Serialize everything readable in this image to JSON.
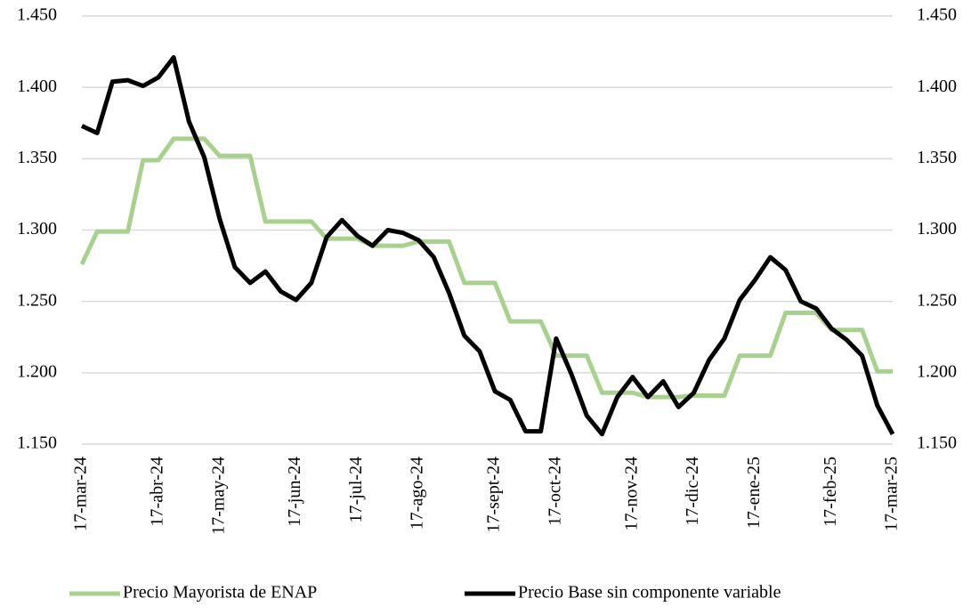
{
  "chart_data": {
    "type": "line",
    "categories": [
      "17-mar-24",
      null,
      null,
      null,
      null,
      "17-abr-24",
      null,
      null,
      null,
      "17-may-24",
      null,
      null,
      null,
      null,
      "17-jun-24",
      null,
      null,
      null,
      "17-jul-24",
      null,
      null,
      null,
      "17-ago-24",
      null,
      null,
      null,
      null,
      "17-sept-24",
      null,
      null,
      null,
      "17-oct-24",
      null,
      null,
      null,
      null,
      "17-nov-24",
      null,
      null,
      null,
      "17-dic-24",
      null,
      null,
      null,
      "17-ene-25",
      null,
      null,
      null,
      null,
      "17-feb-25",
      null,
      null,
      null,
      "17-mar-25"
    ],
    "series": [
      {
        "name": "Precio Mayorista de ENAP",
        "color": "#a9d18e",
        "values": [
          1276,
          1299,
          1299,
          1299,
          1349,
          1349,
          1364,
          1364,
          1364,
          1352,
          1352,
          1352,
          1306,
          1306,
          1306,
          1306,
          1294,
          1294,
          1294,
          1289,
          1289,
          1289,
          1292,
          1292,
          1292,
          1263,
          1263,
          1263,
          1236,
          1236,
          1236,
          1212,
          1212,
          1212,
          1186,
          1186,
          1186,
          1183,
          1183,
          1183,
          1184,
          1184,
          1184,
          1212,
          1212,
          1212,
          1242,
          1242,
          1242,
          1230,
          1230,
          1230,
          1201,
          1201
        ]
      },
      {
        "name": "Precio Base sin componente variable",
        "color": "#000000",
        "values": [
          1373,
          1368,
          1404,
          1405,
          1401,
          1407,
          1421,
          1376,
          1351,
          1308,
          1274,
          1263,
          1271,
          1257,
          1251,
          1263,
          1295,
          1307,
          1296,
          1289,
          1300,
          1298,
          1293,
          1281,
          1256,
          1226,
          1215,
          1187,
          1181,
          1159,
          1159,
          1224,
          1199,
          1170,
          1157,
          1183,
          1197,
          1183,
          1194,
          1176,
          1186,
          1209,
          1224,
          1251,
          1265,
          1281,
          1272,
          1250,
          1245,
          1231,
          1223,
          1212,
          1177,
          1157
        ]
      }
    ],
    "ylim": [
      1150,
      1450
    ],
    "yticks": [
      {
        "value": 1150,
        "label": "1.150"
      },
      {
        "value": 1200,
        "label": "1.200"
      },
      {
        "value": 1250,
        "label": "1.250"
      },
      {
        "value": 1300,
        "label": "1.300"
      },
      {
        "value": 1350,
        "label": "1.350"
      },
      {
        "value": 1400,
        "label": "1.400"
      },
      {
        "value": 1450,
        "label": "1.450"
      }
    ],
    "y2lim": [
      1150,
      1450
    ],
    "y2ticks": [
      {
        "value": 1150,
        "label": "1.150"
      },
      {
        "value": 1200,
        "label": "1.200"
      },
      {
        "value": 1250,
        "label": "1.250"
      },
      {
        "value": 1300,
        "label": "1.300"
      },
      {
        "value": 1350,
        "label": "1.350"
      },
      {
        "value": 1400,
        "label": "1.400"
      },
      {
        "value": 1450,
        "label": "1.450"
      }
    ],
    "grid": true,
    "legend": "bottom"
  }
}
